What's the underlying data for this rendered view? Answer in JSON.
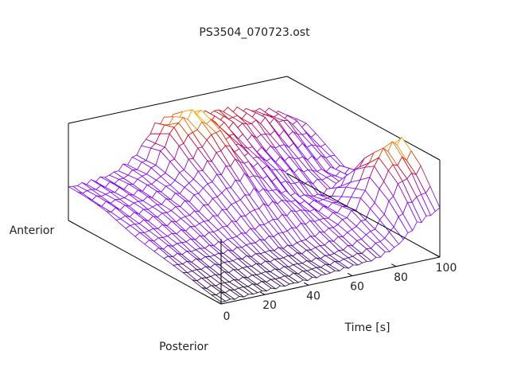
{
  "chart_data": {
    "type": "surface",
    "title": "PS3504_070723.ost",
    "xlabel": "Time [s]",
    "ylabel_top": "Anterior",
    "ylabel_bottom": "Posterior",
    "xlim": [
      0,
      100
    ],
    "xticks": [
      "0",
      "20",
      "40",
      "60",
      "80",
      "100"
    ],
    "xtick_values": [
      0,
      20,
      40,
      60,
      80,
      100
    ],
    "time": [
      0,
      10,
      20,
      30,
      40,
      50,
      60,
      70,
      80,
      90,
      100
    ],
    "position": [
      0,
      0.125,
      0.25,
      0.375,
      0.5,
      0.625,
      0.75,
      0.875,
      1
    ],
    "z": [
      [
        0.02,
        0.03,
        0.04,
        0.05,
        0.06,
        0.08,
        0.1,
        0.12,
        0.2,
        0.4,
        0.5
      ],
      [
        0.05,
        0.06,
        0.07,
        0.08,
        0.09,
        0.1,
        0.12,
        0.18,
        0.3,
        0.7,
        0.8
      ],
      [
        0.1,
        0.11,
        0.12,
        0.13,
        0.14,
        0.15,
        0.2,
        0.25,
        0.4,
        0.9,
        1.0
      ],
      [
        0.15,
        0.16,
        0.17,
        0.2,
        0.25,
        0.3,
        0.35,
        0.3,
        0.35,
        0.7,
        0.75
      ],
      [
        0.2,
        0.22,
        0.25,
        0.3,
        0.4,
        0.5,
        0.45,
        0.35,
        0.3,
        0.4,
        0.45
      ],
      [
        0.25,
        0.28,
        0.32,
        0.4,
        0.55,
        0.7,
        0.6,
        0.5,
        0.45,
        0.4,
        0.4
      ],
      [
        0.3,
        0.32,
        0.36,
        0.45,
        0.7,
        0.9,
        0.7,
        0.6,
        0.6,
        0.55,
        0.5
      ],
      [
        0.32,
        0.34,
        0.38,
        0.5,
        0.9,
        1.0,
        0.8,
        0.75,
        0.75,
        0.7,
        0.6
      ],
      [
        0.34,
        0.35,
        0.38,
        0.5,
        0.8,
        0.85,
        0.8,
        0.8,
        0.75,
        0.7,
        0.6
      ]
    ],
    "colors": {
      "low": "#000000",
      "mid": "#8000ff",
      "high": "#e00000",
      "peak": "#ffe000"
    }
  }
}
